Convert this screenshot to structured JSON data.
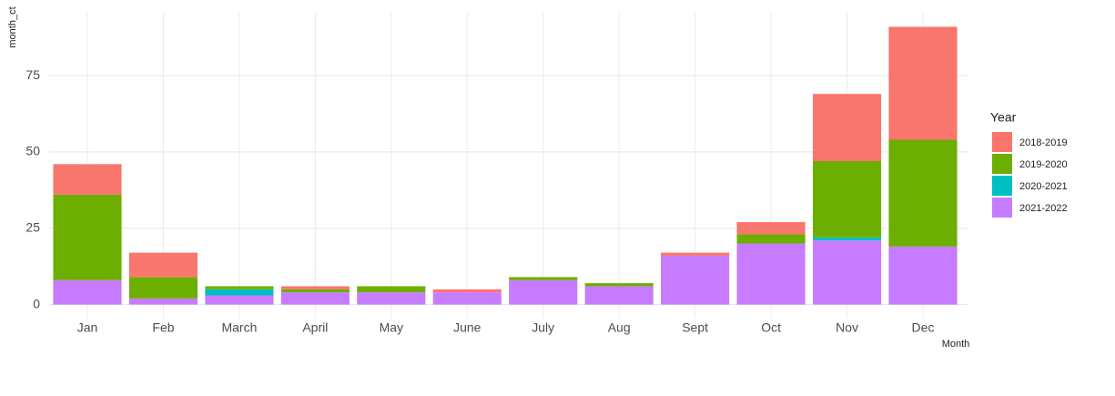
{
  "chart_data": {
    "type": "stacked_bar",
    "x_label": "Month",
    "y_label": "month_ct",
    "categories": [
      "Jan",
      "Feb",
      "March",
      "April",
      "May",
      "June",
      "July",
      "Aug",
      "Sept",
      "Oct",
      "Nov",
      "Dec"
    ],
    "series": [
      {
        "name": "2018-2019",
        "color": "#F8766D",
        "values": [
          10,
          8,
          0,
          1,
          0,
          1,
          0,
          0,
          1,
          4,
          22,
          37
        ]
      },
      {
        "name": "2019-2020",
        "color": "#6CAF00",
        "values": [
          28,
          7,
          1,
          1,
          2,
          0,
          1,
          1,
          0,
          3,
          25,
          35
        ]
      },
      {
        "name": "2020-2021",
        "color": "#00BFC4",
        "values": [
          0,
          0,
          2,
          0,
          0,
          0,
          0,
          0,
          0,
          0,
          1,
          0
        ]
      },
      {
        "name": "2021-2022",
        "color": "#C77CFF",
        "values": [
          8,
          2,
          3,
          4,
          4,
          4,
          8,
          6,
          16,
          20,
          21,
          19
        ]
      }
    ],
    "legend_title": "Year",
    "ylim": [
      -4.6,
      95.6
    ],
    "yticks": [
      0,
      25,
      50,
      75
    ],
    "grid": true
  }
}
